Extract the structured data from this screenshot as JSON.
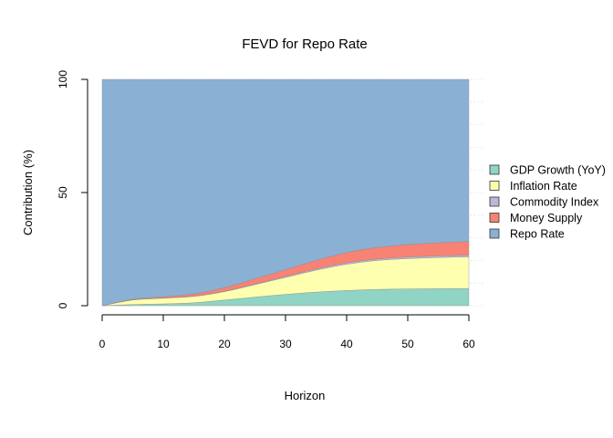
{
  "chart_data": {
    "type": "area",
    "stacked": true,
    "title": "FEVD for Repo Rate",
    "xlabel": "Horizon",
    "ylabel": "Contribution (%)",
    "xlim": [
      0,
      60
    ],
    "ylim": [
      0,
      100
    ],
    "x_ticks": [
      0,
      10,
      20,
      30,
      40,
      50,
      60
    ],
    "y_ticks": [
      0,
      50,
      100
    ],
    "grid": "dotted horizontal",
    "legend_position": "right",
    "x": [
      0,
      5,
      10,
      15,
      20,
      25,
      30,
      35,
      40,
      45,
      50,
      55,
      60
    ],
    "series": [
      {
        "name": "GDP Growth (YoY)",
        "color": "#8fd4c4",
        "values": [
          0,
          0.5,
          0.8,
          1.3,
          2.5,
          3.8,
          5.0,
          6.0,
          6.7,
          7.2,
          7.4,
          7.5,
          7.6
        ]
      },
      {
        "name": "Inflation Rate",
        "color": "#ffffb0",
        "values": [
          0,
          2.0,
          2.5,
          2.8,
          3.7,
          5.5,
          7.5,
          9.7,
          11.6,
          12.8,
          13.4,
          13.8,
          14.0
        ]
      },
      {
        "name": "Commodity Index",
        "color": "#bdb8da",
        "values": [
          0,
          0.1,
          0.1,
          0.1,
          0.2,
          0.3,
          0.4,
          0.5,
          0.6,
          0.6,
          0.7,
          0.7,
          0.7
        ]
      },
      {
        "name": "Money Supply",
        "color": "#f88273",
        "values": [
          0,
          0.3,
          0.6,
          1.0,
          1.6,
          2.3,
          3.0,
          3.8,
          4.6,
          5.1,
          5.5,
          5.8,
          6.1
        ]
      },
      {
        "name": "Repo Rate",
        "color": "#8ab1d4",
        "values": [
          100,
          97.1,
          96.0,
          94.8,
          92.0,
          88.1,
          84.1,
          80.0,
          76.5,
          74.3,
          73.0,
          72.2,
          71.6
        ]
      }
    ]
  }
}
